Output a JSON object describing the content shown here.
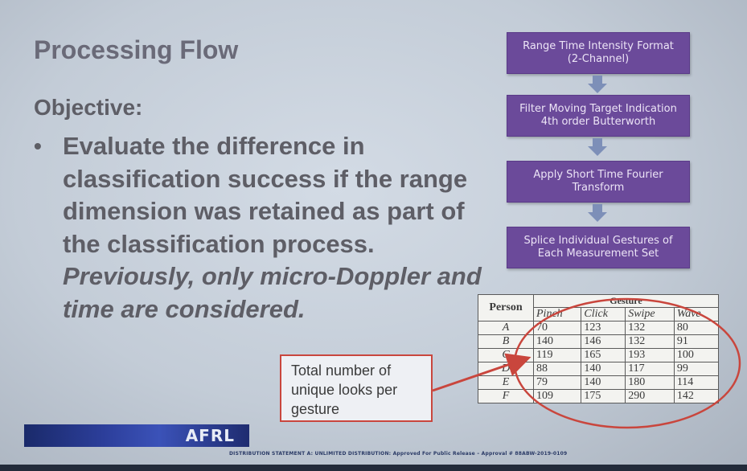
{
  "slide": {
    "title": "Processing Flow",
    "objective_label": "Objective:",
    "bullet_main": "Evaluate the difference in classification success if the range dimension was retained as part of the classification process. ",
    "bullet_italic": "Previously, only micro-Doppler and time are considered."
  },
  "flow": {
    "steps": [
      {
        "line1": "Range Time Intensity Format",
        "line2": "(2-Channel)"
      },
      {
        "line1": "Filter Moving Target Indication",
        "line2": "4th order Butterworth"
      },
      {
        "line1": "Apply Short Time Fourier",
        "line2": "Transform"
      },
      {
        "line1": "Splice Individual Gestures of",
        "line2": "Each Measurement Set"
      }
    ],
    "box_color": "#6b4a9a",
    "arrow_color": "#7d8fb8"
  },
  "table": {
    "person_header": "Person",
    "gesture_header": "Gesture",
    "columns": [
      "Pinch",
      "Click",
      "Swipe",
      "Wave"
    ],
    "rows": [
      {
        "person": "A",
        "values": [
          "70",
          "123",
          "132",
          "80"
        ]
      },
      {
        "person": "B",
        "values": [
          "140",
          "146",
          "132",
          "91"
        ]
      },
      {
        "person": "C",
        "values": [
          "119",
          "165",
          "193",
          "100"
        ]
      },
      {
        "person": "D",
        "values": [
          "88",
          "140",
          "117",
          "99"
        ]
      },
      {
        "person": "E",
        "values": [
          "79",
          "140",
          "180",
          "114"
        ]
      },
      {
        "person": "F",
        "values": [
          "109",
          "175",
          "290",
          "142"
        ]
      }
    ]
  },
  "callout": {
    "text": "Total number of unique looks per gesture",
    "color": "#c9463d"
  },
  "footer": {
    "logo": "AFRL",
    "distribution": "DISTRIBUTION STATEMENT A: UNLIMITED DISTRIBUTION: Approved For Public Release – Approval # 88ABW-2019-0109"
  }
}
